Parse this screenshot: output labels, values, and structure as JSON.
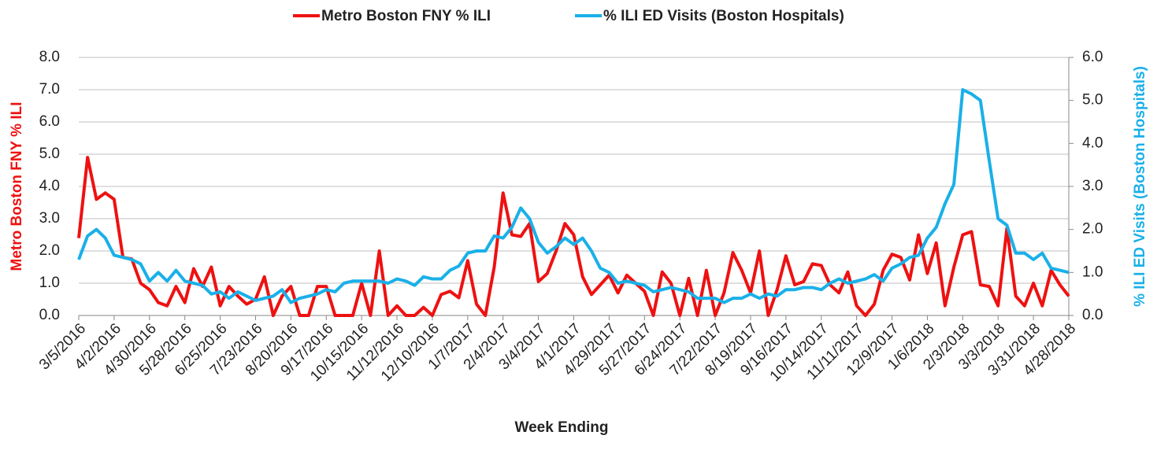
{
  "chart_data": {
    "type": "line",
    "legend_position": "top",
    "xlabel": "Week Ending",
    "ylabel": "Metro Boston FNY % ILI",
    "y2label": "% ILI ED Visits (Boston Hospitals)",
    "grid": true,
    "categories": [
      "3/5/2016",
      null,
      null,
      null,
      "4/2/2016",
      null,
      null,
      null,
      "4/30/2016",
      null,
      null,
      null,
      "5/28/2016",
      null,
      null,
      null,
      "6/25/2016",
      null,
      null,
      null,
      "7/23/2016",
      null,
      null,
      null,
      "8/20/2016",
      null,
      null,
      null,
      "9/17/2016",
      null,
      null,
      null,
      "10/15/2016",
      null,
      null,
      null,
      "11/12/2016",
      null,
      null,
      null,
      "12/10/2016",
      null,
      null,
      null,
      "1/7/2017",
      null,
      null,
      null,
      "2/4/2017",
      null,
      null,
      null,
      "3/4/2017",
      null,
      null,
      null,
      "4/1/2017",
      null,
      null,
      null,
      "4/29/2017",
      null,
      null,
      null,
      "5/27/2017",
      null,
      null,
      null,
      "6/24/2017",
      null,
      null,
      null,
      "7/22/2017",
      null,
      null,
      null,
      "8/19/2017",
      null,
      null,
      null,
      "9/16/2017",
      null,
      null,
      null,
      "10/14/2017",
      null,
      null,
      null,
      "11/11/2017",
      null,
      null,
      null,
      "12/9/2017",
      null,
      null,
      null,
      "1/6/2018",
      null,
      null,
      null,
      "2/3/2018",
      null,
      null,
      null,
      "3/3/2018",
      null,
      null,
      null,
      "3/31/2018",
      null,
      null,
      null,
      "4/28/2018"
    ],
    "series": [
      {
        "name": "Metro Boston FNY % ILI",
        "color": "#ee1111",
        "axis": "y",
        "values": [
          2.4,
          4.9,
          3.6,
          3.8,
          3.6,
          1.8,
          1.75,
          1.0,
          0.8,
          0.4,
          0.3,
          0.9,
          0.4,
          1.45,
          0.9,
          1.5,
          0.3,
          0.9,
          0.6,
          0.35,
          0.5,
          1.2,
          0.0,
          0.6,
          0.9,
          0.0,
          0.0,
          0.9,
          0.9,
          0.0,
          0.0,
          0.0,
          1.0,
          0.0,
          2.0,
          0.0,
          0.3,
          0.0,
          0.0,
          0.25,
          0.0,
          0.65,
          0.75,
          0.55,
          1.7,
          0.35,
          0.0,
          1.5,
          3.8,
          2.5,
          2.45,
          2.85,
          1.05,
          1.3,
          2.0,
          2.85,
          2.5,
          1.2,
          0.65,
          0.95,
          1.25,
          0.7,
          1.25,
          1.0,
          0.75,
          0.0,
          1.35,
          1.0,
          0.0,
          1.15,
          0.0,
          1.4,
          0.0,
          0.7,
          1.95,
          1.4,
          0.7,
          2.0,
          0.0,
          0.8,
          1.85,
          0.95,
          1.05,
          1.6,
          1.55,
          0.95,
          0.7,
          1.35,
          0.3,
          0.0,
          0.35,
          1.4,
          1.9,
          1.8,
          1.1,
          2.5,
          1.3,
          2.25,
          0.3,
          1.5,
          2.5,
          2.6,
          0.95,
          0.9,
          0.3,
          2.7,
          0.6,
          0.3,
          1.0,
          0.3,
          1.4,
          0.95,
          0.6
        ]
      },
      {
        "name": "% ILI ED Visits (Boston Hospitals)",
        "color": "#1ab0e8",
        "axis": "y2",
        "values": [
          1.3,
          1.85,
          2.0,
          1.8,
          1.4,
          1.35,
          1.3,
          1.2,
          0.8,
          1.0,
          0.8,
          1.05,
          0.8,
          0.75,
          0.7,
          0.5,
          0.55,
          0.4,
          0.55,
          0.45,
          0.35,
          0.4,
          0.45,
          0.6,
          0.3,
          0.4,
          0.45,
          0.5,
          0.6,
          0.55,
          0.75,
          0.8,
          0.8,
          0.8,
          0.8,
          0.75,
          0.85,
          0.8,
          0.7,
          0.9,
          0.85,
          0.85,
          1.05,
          1.15,
          1.45,
          1.5,
          1.5,
          1.85,
          1.8,
          2.05,
          2.5,
          2.25,
          1.7,
          1.45,
          1.6,
          1.8,
          1.65,
          1.8,
          1.5,
          1.1,
          1.0,
          0.75,
          0.8,
          0.75,
          0.7,
          0.55,
          0.6,
          0.65,
          0.6,
          0.55,
          0.4,
          0.4,
          0.4,
          0.3,
          0.4,
          0.4,
          0.5,
          0.4,
          0.5,
          0.45,
          0.6,
          0.6,
          0.65,
          0.65,
          0.6,
          0.75,
          0.85,
          0.75,
          0.8,
          0.85,
          0.95,
          0.8,
          1.1,
          1.2,
          1.35,
          1.4,
          1.8,
          2.05,
          2.6,
          3.05,
          5.25,
          5.15,
          5.0,
          3.6,
          2.25,
          2.1,
          1.45,
          1.45,
          1.3,
          1.45,
          1.1,
          1.05,
          1.0
        ]
      }
    ],
    "ylim": [
      0,
      8
    ],
    "yticks": [
      {
        "value": 0,
        "label": "0.0"
      },
      {
        "value": 1,
        "label": "1.0"
      },
      {
        "value": 2,
        "label": "2.0"
      },
      {
        "value": 3,
        "label": "3.0"
      },
      {
        "value": 4,
        "label": "4.0"
      },
      {
        "value": 5,
        "label": "5.0"
      },
      {
        "value": 6,
        "label": "6.0"
      },
      {
        "value": 7,
        "label": "7.0"
      },
      {
        "value": 8,
        "label": "8.0"
      }
    ],
    "y2lim": [
      0,
      6
    ],
    "y2ticks": [
      {
        "value": 0,
        "label": "0.0"
      },
      {
        "value": 1,
        "label": "1.0"
      },
      {
        "value": 2,
        "label": "2.0"
      },
      {
        "value": 3,
        "label": "3.0"
      },
      {
        "value": 4,
        "label": "4.0"
      },
      {
        "value": 5,
        "label": "5.0"
      },
      {
        "value": 6,
        "label": "6.0"
      }
    ]
  }
}
